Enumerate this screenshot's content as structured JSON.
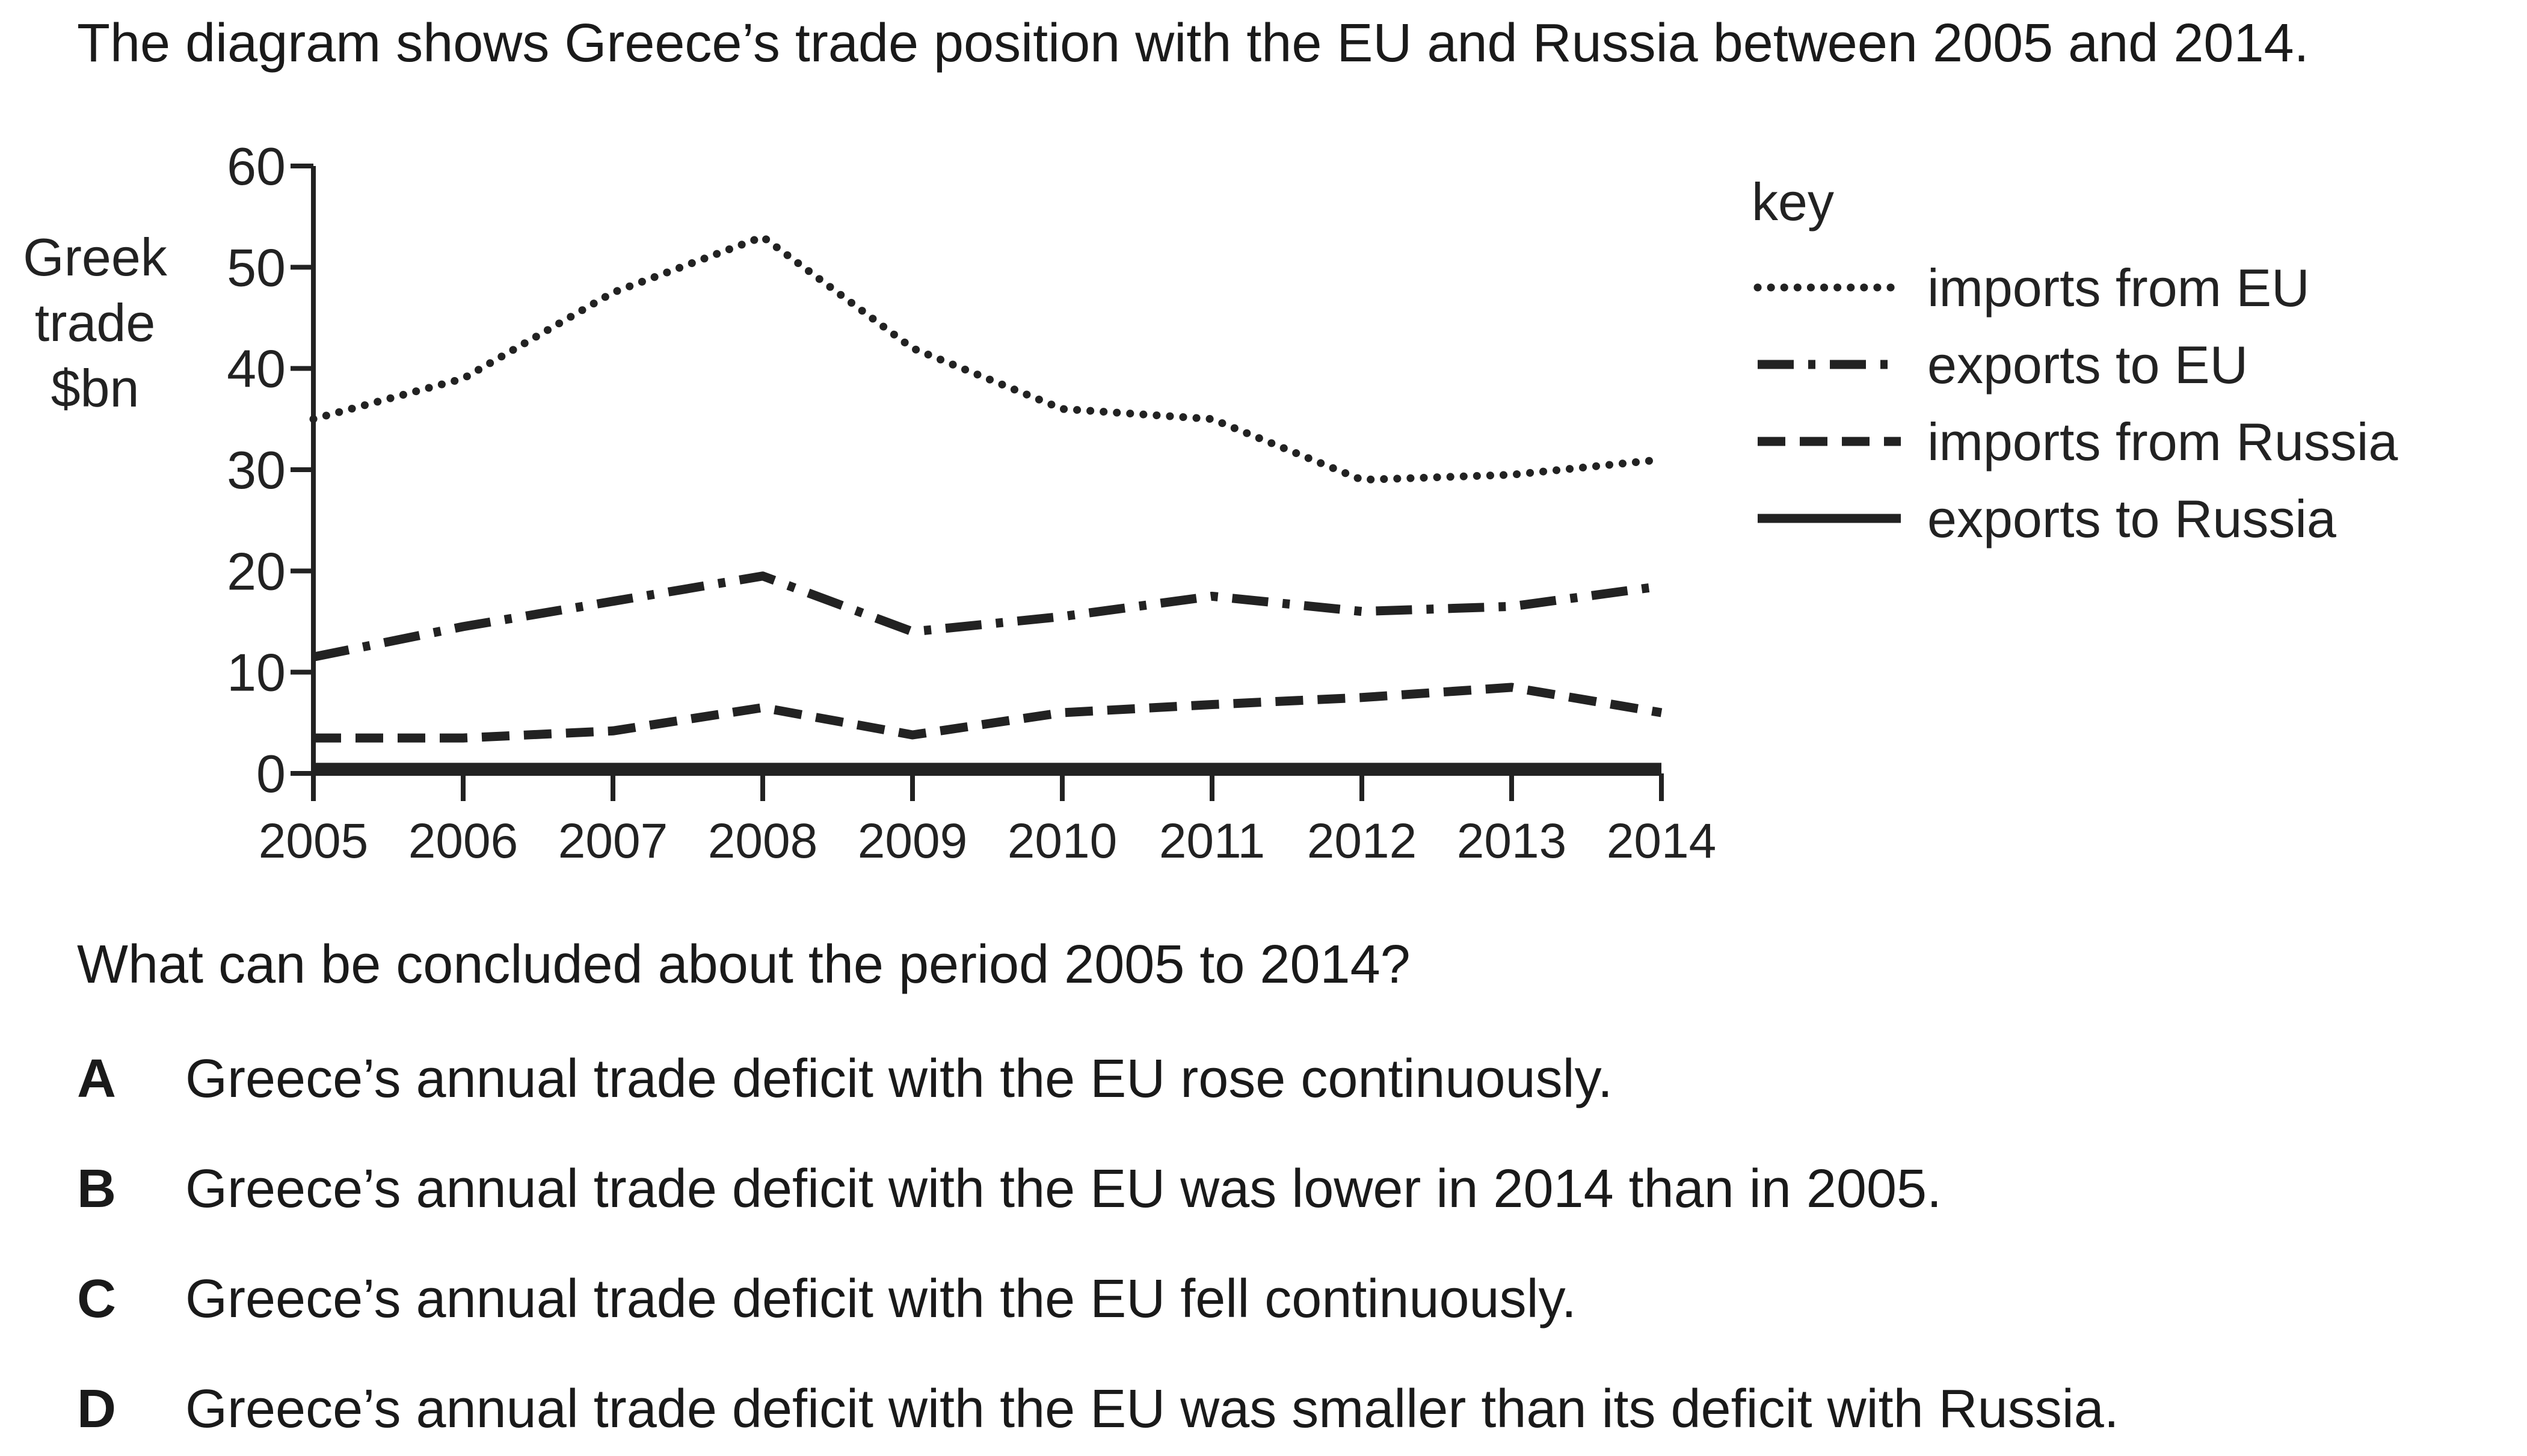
{
  "intro": "The diagram shows Greece’s trade position with the EU and Russia between 2005 and 2014.",
  "question": "What can be concluded about the period 2005 to 2014?",
  "options": [
    {
      "letter": "A",
      "text": "Greece’s annual trade deficit with the EU rose continuously."
    },
    {
      "letter": "B",
      "text": "Greece’s annual trade deficit with the EU was lower in 2014 than in 2005."
    },
    {
      "letter": "C",
      "text": "Greece’s annual trade deficit with the EU fell continuously."
    },
    {
      "letter": "D",
      "text": "Greece’s annual trade deficit with the EU was smaller than its deficit with Russia."
    }
  ],
  "chart_data": {
    "type": "line",
    "ylabel_lines": [
      "Greek",
      "trade",
      "$bn"
    ],
    "ylim": [
      0,
      60
    ],
    "yticks": [
      0,
      10,
      20,
      30,
      40,
      50,
      60
    ],
    "x": [
      2005,
      2006,
      2007,
      2008,
      2009,
      2010,
      2011,
      2012,
      2013,
      2014
    ],
    "legend_title": "key",
    "legend_position": "right",
    "series": [
      {
        "name": "imports from EU",
        "style": "dotted",
        "values": [
          35,
          39,
          47.5,
          53,
          42,
          36,
          35,
          29,
          29.5,
          31
        ]
      },
      {
        "name": "exports to EU",
        "style": "dash-dot",
        "values": [
          11.5,
          14.5,
          17,
          19.5,
          14,
          15.5,
          17.5,
          16,
          16.5,
          18.5
        ]
      },
      {
        "name": "imports from Russia",
        "style": "dashed",
        "values": [
          3.5,
          3.5,
          4.2,
          6.5,
          3.8,
          6,
          6.8,
          7.5,
          8.5,
          6
        ]
      },
      {
        "name": "exports to Russia",
        "style": "solid",
        "values": [
          0.6,
          0.6,
          0.6,
          0.6,
          0.6,
          0.6,
          0.6,
          0.6,
          0.6,
          0.6
        ]
      }
    ],
    "grid": false
  }
}
